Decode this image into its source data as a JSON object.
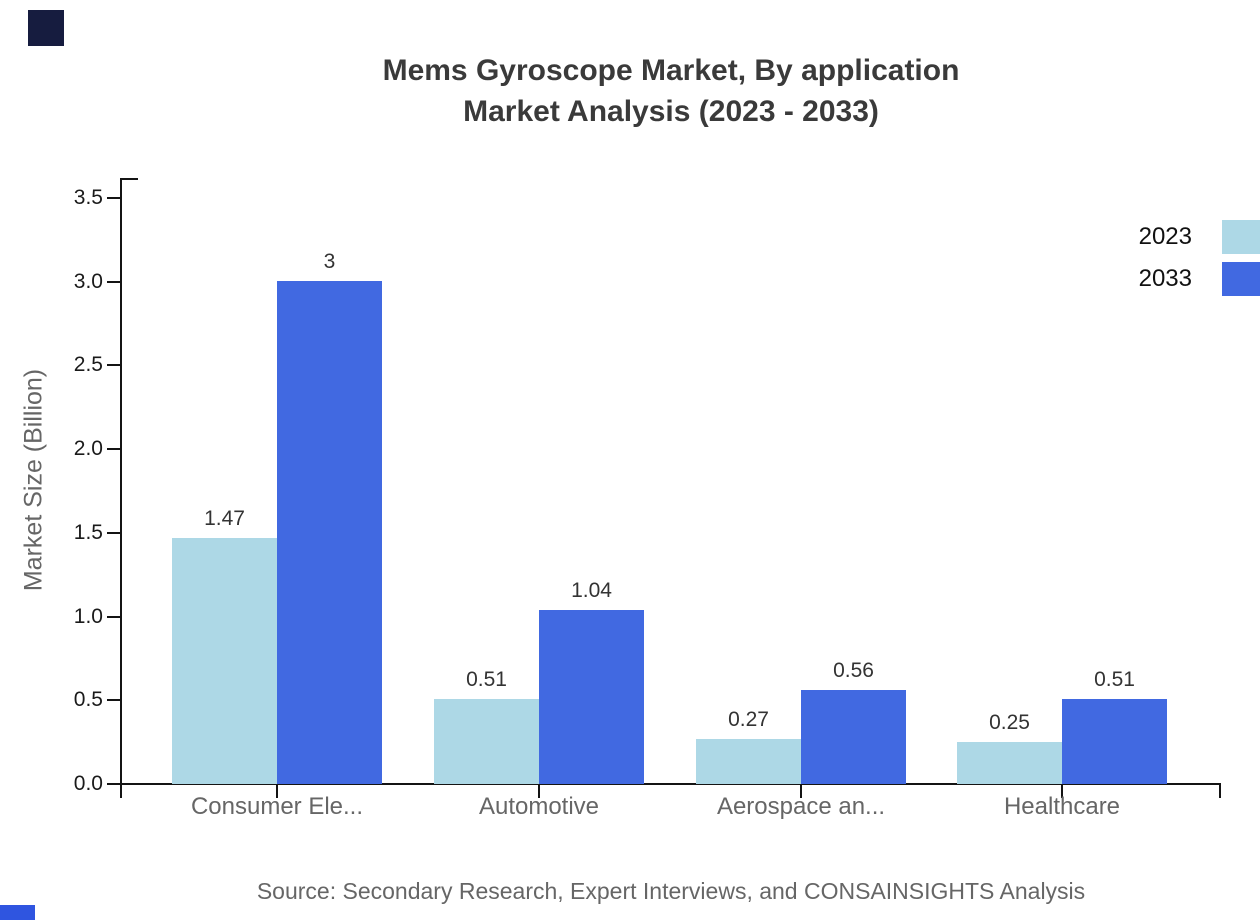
{
  "title": {
    "line1": "Mems Gyroscope Market, By application",
    "line2": "Market Analysis (2023 - 2033)"
  },
  "axis": {
    "ylabel": "Market Size (Billion)"
  },
  "legend": {
    "items": [
      {
        "label": "2023",
        "color": "#ADD8E6"
      },
      {
        "label": "2033",
        "color": "#4169E1"
      }
    ]
  },
  "footer": {
    "source": "Source: Secondary Research, Expert Interviews, and CONSAINSIGHTS Analysis"
  },
  "decor": {
    "top_left_square_color": "#161C3F",
    "bottom_left_square_color": "#2F55E0"
  },
  "chart_data": {
    "type": "bar",
    "title": "Mems Gyroscope Market, By application Market Analysis (2023 - 2033)",
    "categories": [
      "Consumer Ele...",
      "Automotive",
      "Aerospace an...",
      "Healthcare"
    ],
    "series": [
      {
        "name": "2023",
        "color": "#ADD8E6",
        "values": [
          1.47,
          0.51,
          0.27,
          0.25
        ],
        "labels": [
          "1.47",
          "0.51",
          "0.27",
          "0.25"
        ]
      },
      {
        "name": "2033",
        "color": "#4169E1",
        "values": [
          3,
          1.04,
          0.56,
          0.51
        ],
        "labels": [
          "3",
          "1.04",
          "0.56",
          "0.51"
        ]
      }
    ],
    "xlabel": "",
    "ylabel": "Market Size (Billion)",
    "ylim": [
      0,
      3.5
    ],
    "ytick_step": 0.5,
    "ytick_labels": [
      "0.0",
      "0.5",
      "1.0",
      "1.5",
      "2.0",
      "2.5",
      "3.0",
      "3.5"
    ],
    "grid": false,
    "legend_position": "top-right",
    "value_labels_shown": true
  }
}
